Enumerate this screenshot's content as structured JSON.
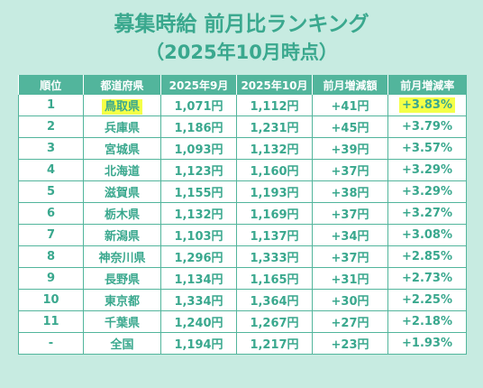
{
  "title": {
    "line1": "募集時給 前月比ランキング",
    "line2": "（2025年10月時点）"
  },
  "colors": {
    "background": "#c7ebe1",
    "accent": "#52b59c",
    "text": "#3aa88e",
    "highlight": "#f4ff47"
  },
  "table": {
    "headers": [
      "順位",
      "都道府県",
      "2025年9月",
      "2025年10月",
      "前月増減額",
      "前月増減率"
    ],
    "rows": [
      [
        "1",
        "鳥取県",
        "1,071円",
        "1,112円",
        "+41円",
        "+3.83%"
      ],
      [
        "2",
        "兵庫県",
        "1,186円",
        "1,231円",
        "+45円",
        "+3.79%"
      ],
      [
        "3",
        "宮城県",
        "1,093円",
        "1,132円",
        "+39円",
        "+3.57%"
      ],
      [
        "4",
        "北海道",
        "1,123円",
        "1,160円",
        "+37円",
        "+3.29%"
      ],
      [
        "5",
        "滋賀県",
        "1,155円",
        "1,193円",
        "+38円",
        "+3.29%"
      ],
      [
        "6",
        "栃木県",
        "1,132円",
        "1,169円",
        "+37円",
        "+3.27%"
      ],
      [
        "7",
        "新潟県",
        "1,103円",
        "1,137円",
        "+34円",
        "+3.08%"
      ],
      [
        "8",
        "神奈川県",
        "1,296円",
        "1,333円",
        "+37円",
        "+2.85%"
      ],
      [
        "9",
        "長野県",
        "1,134円",
        "1,165円",
        "+31円",
        "+2.73%"
      ],
      [
        "10",
        "東京都",
        "1,334円",
        "1,364円",
        "+30円",
        "+2.25%"
      ],
      [
        "11",
        "千葉県",
        "1,240円",
        "1,267円",
        "+27円",
        "+2.18%"
      ],
      [
        "-",
        "全国",
        "1,194円",
        "1,217円",
        "+23円",
        "+1.93%"
      ]
    ]
  }
}
